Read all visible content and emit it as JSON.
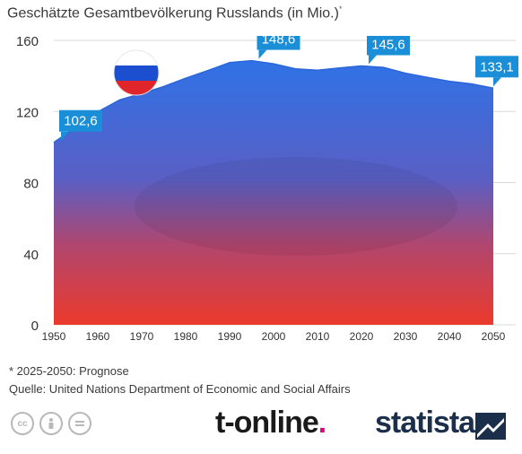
{
  "chart_data": {
    "type": "area",
    "title": "Geschätzte Gesamtbevölkerung Russlands (in Mio.)",
    "title_footnote_mark": "*",
    "x": [
      1950,
      1955,
      1960,
      1965,
      1970,
      1975,
      1980,
      1985,
      1990,
      1995,
      2000,
      2005,
      2010,
      2015,
      2020,
      2025,
      2030,
      2035,
      2040,
      2045,
      2050
    ],
    "series": [
      {
        "values": [
          102.6,
          111.0,
          119.8,
          126.5,
          130.1,
          134.0,
          138.7,
          143.0,
          147.5,
          148.6,
          146.8,
          144.0,
          143.2,
          144.5,
          145.6,
          144.8,
          141.5,
          139.2,
          137.0,
          135.5,
          133.1
        ]
      }
    ],
    "xticks": [
      "1950",
      "1960",
      "1970",
      "1980",
      "1990",
      "2000",
      "2010",
      "2020",
      "2030",
      "2040",
      "2050"
    ],
    "yticks": [
      "0",
      "40",
      "80",
      "120",
      "160"
    ],
    "ylim": [
      0,
      160
    ],
    "xlim": [
      1950,
      2050
    ],
    "grid": true,
    "annotations": [
      {
        "x": 1950,
        "label": "102,6"
      },
      {
        "x": 1995,
        "label": "148,6"
      },
      {
        "x": 2020,
        "label": "145,6"
      },
      {
        "x": 2050,
        "label": "133,1"
      }
    ],
    "colors": {
      "fill_top": "#2f6fe0",
      "fill_bottom": "#ea3b30",
      "callout": "#1a8fd8",
      "grid": "#d9d9d9"
    }
  },
  "notes": {
    "forecast": "* 2025-2050: Prognose",
    "source": "Quelle: United Nations Department of Economic and Social Affairs"
  },
  "branding": {
    "tonline": "t-online",
    "tonline_dot": ".",
    "statista": "statista"
  },
  "license_icons": [
    "cc-icon",
    "attribution-icon",
    "no-derivatives-icon"
  ]
}
